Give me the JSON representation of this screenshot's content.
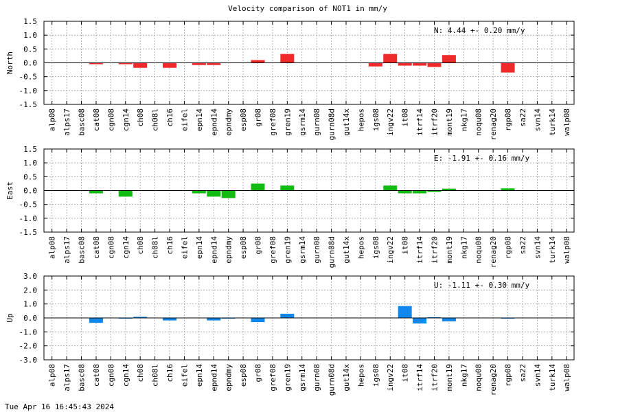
{
  "chart_data": {
    "title": "Velocity comparison of NOT1 in mm/y",
    "timestamp": "Tue Apr 16 16:45:43 2024",
    "categories": [
      "alp08",
      "alps17",
      "basc08",
      "cat08",
      "cgn08",
      "cgn14",
      "ch08",
      "ch08l",
      "ch16",
      "eifel",
      "epn14",
      "epnd14",
      "epndmy",
      "esp08",
      "gr08",
      "gref08",
      "gren19",
      "gsrm14",
      "gurn08",
      "gurn08d",
      "gut14x",
      "hepos",
      "igs08",
      "ingv22",
      "it08",
      "itrf14",
      "itrf20",
      "mont19",
      "nkg17",
      "noqu08",
      "renag20",
      "rgp08",
      "sa22",
      "svn14",
      "turk14",
      "walp08"
    ],
    "panels": [
      {
        "type": "bar",
        "ylabel": "North",
        "color": "#ee2a2a",
        "ylim": [
          -1.5,
          1.5
        ],
        "yticks": [
          "1.5",
          "1.0",
          "0.5",
          "0.0",
          "-0.5",
          "-1.0",
          "-1.5"
        ],
        "stat": "N:   4.44 +-  0.20 mm/y",
        "values": [
          null,
          null,
          null,
          -0.05,
          null,
          -0.05,
          -0.18,
          null,
          -0.18,
          null,
          -0.08,
          -0.08,
          null,
          null,
          0.1,
          null,
          0.32,
          null,
          null,
          null,
          null,
          null,
          -0.13,
          0.32,
          -0.1,
          -0.1,
          -0.15,
          0.28,
          null,
          null,
          null,
          -0.35,
          null,
          null,
          null,
          null
        ]
      },
      {
        "type": "bar",
        "ylabel": "East",
        "color": "#11bb11",
        "ylim": [
          -1.5,
          1.5
        ],
        "yticks": [
          "1.5",
          "1.0",
          "0.5",
          "0.0",
          "-0.5",
          "-1.0",
          "-1.5"
        ],
        "stat": "E:  -1.91 +-  0.16 mm/y",
        "values": [
          null,
          null,
          null,
          -0.1,
          null,
          -0.22,
          null,
          null,
          null,
          null,
          -0.1,
          -0.22,
          -0.27,
          null,
          0.25,
          null,
          0.18,
          null,
          null,
          null,
          null,
          null,
          null,
          0.18,
          -0.1,
          -0.1,
          -0.05,
          0.07,
          null,
          null,
          null,
          0.08,
          null,
          null,
          null,
          null
        ]
      },
      {
        "type": "bar",
        "ylabel": "Up",
        "color": "#1188ee",
        "ylim": [
          -3.0,
          3.0
        ],
        "yticks": [
          "3.0",
          "2.0",
          "1.0",
          "0.0",
          "-1.0",
          "-2.0",
          "-3.0"
        ],
        "stat": "U:  -1.11 +-  0.30 mm/y",
        "values": [
          null,
          null,
          null,
          -0.35,
          null,
          -0.05,
          0.08,
          null,
          -0.18,
          null,
          null,
          -0.18,
          -0.05,
          null,
          -0.3,
          null,
          0.3,
          null,
          null,
          null,
          null,
          null,
          null,
          null,
          0.85,
          -0.4,
          0.05,
          -0.25,
          null,
          null,
          null,
          -0.05,
          null,
          null,
          null,
          null
        ]
      }
    ]
  }
}
